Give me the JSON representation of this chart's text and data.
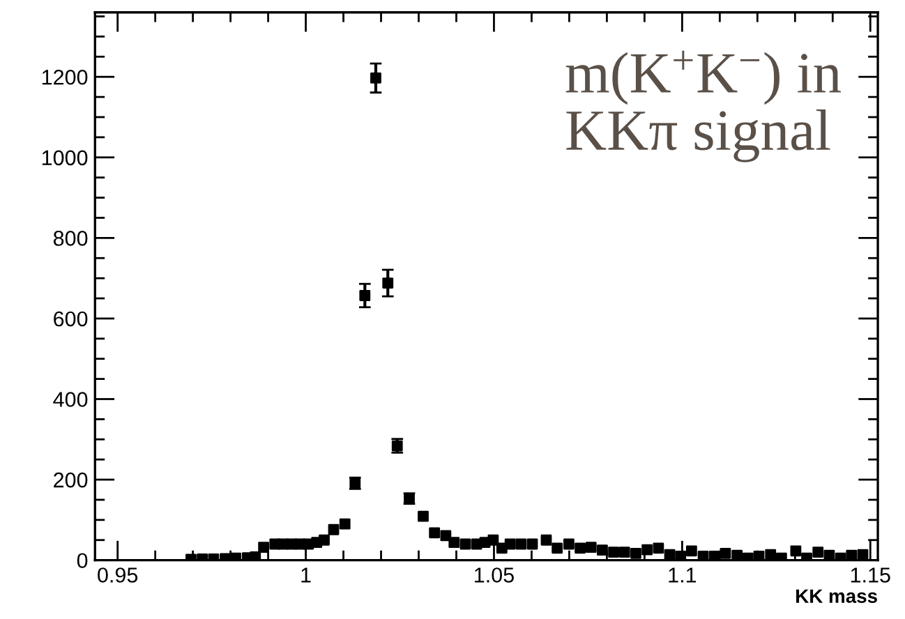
{
  "chart_data": {
    "type": "scatter",
    "title": "m(K$^{+}$K$^{−}$) in\nKKπ signal",
    "xlabel": "KK mass",
    "x": [
      0.9695,
      0.9725,
      0.9755,
      0.9786,
      0.9814,
      0.9845,
      0.9866,
      0.9888,
      0.9918,
      0.994,
      0.9963,
      0.9985,
      1.0007,
      1.0029,
      1.0049,
      1.0074,
      1.0104,
      1.0131,
      1.0157,
      1.0186,
      1.0218,
      1.0243,
      1.0275,
      1.0312,
      1.0342,
      1.0372,
      1.0394,
      1.0424,
      1.0454,
      1.0476,
      1.0498,
      1.0521,
      1.0543,
      1.0572,
      1.0602,
      1.0639,
      1.0668,
      1.0699,
      1.0729,
      1.0758,
      1.0788,
      1.0818,
      1.0847,
      1.0877,
      1.0907,
      1.0937,
      1.0967,
      1.0996,
      1.1025,
      1.1056,
      1.1086,
      1.1115,
      1.1146,
      1.1175,
      1.1204,
      1.1235,
      1.1264,
      1.1302,
      1.1331,
      1.1361,
      1.1391,
      1.1421,
      1.145,
      1.148
    ],
    "values": [
      2,
      3,
      3,
      4,
      5,
      6,
      8,
      32,
      40,
      40,
      40,
      40,
      40,
      44,
      50,
      76,
      90,
      191,
      657,
      1197,
      688,
      284,
      153,
      109,
      68,
      61,
      44,
      40,
      40,
      44,
      50,
      30,
      40,
      40,
      40,
      50,
      30,
      40,
      30,
      32,
      25,
      20,
      20,
      17,
      26,
      30,
      14,
      10,
      23,
      10,
      10,
      17,
      12,
      5,
      10,
      14,
      5,
      23,
      5,
      20,
      12,
      5,
      12,
      14
    ],
    "errors": [
      null,
      null,
      null,
      null,
      null,
      null,
      null,
      null,
      null,
      null,
      null,
      null,
      null,
      null,
      null,
      null,
      null,
      14,
      29,
      36,
      33,
      17,
      13,
      null,
      null,
      null,
      null,
      null,
      null,
      null,
      null,
      null,
      null,
      null,
      null,
      null,
      null,
      null,
      null,
      null,
      null,
      null,
      null,
      null,
      null,
      null,
      null,
      null,
      null,
      null,
      null,
      null,
      null,
      null,
      null,
      null,
      null,
      null,
      null,
      null,
      null,
      null,
      null,
      null
    ],
    "color": "#000000",
    "marker": "square",
    "xlim": [
      0.944,
      1.152
    ],
    "ylim": [
      0,
      1360
    ],
    "xticks": [
      0.95,
      1,
      1.05,
      1.1,
      1.15
    ],
    "yticks": [
      0,
      200,
      400,
      600,
      800,
      1000,
      1200
    ],
    "grid": false
  }
}
